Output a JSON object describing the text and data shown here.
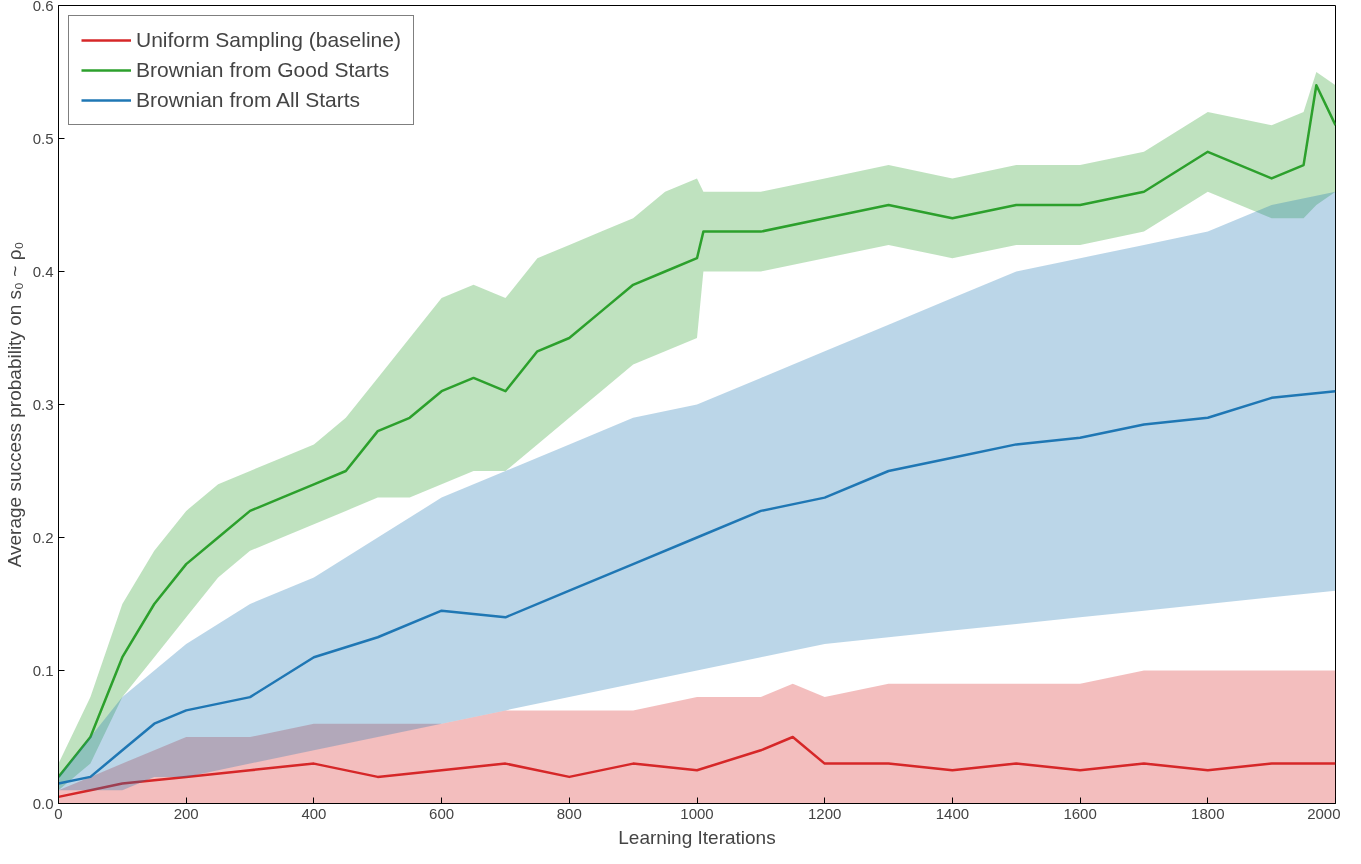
{
  "chart_data": {
    "type": "line",
    "xlabel": "Learning Iterations",
    "ylabel": "Average success probability on s₀ ~ ρ₀",
    "xlim": [
      0,
      2000
    ],
    "ylim": [
      0,
      0.6
    ],
    "xticks": [
      0,
      200,
      400,
      600,
      800,
      1000,
      1200,
      1400,
      1600,
      1800,
      2000
    ],
    "yticks": [
      {
        "value": 0,
        "label": "0.0"
      },
      0.1,
      0.2,
      0.3,
      0.4,
      0.5,
      0.6
    ],
    "grid": false,
    "legend": "top left",
    "marker": "none",
    "line_style": "solid",
    "series": [
      {
        "name": "Uniform Sampling (baseline)",
        "color": "#d62728",
        "x": [
          0,
          50,
          100,
          200,
          300,
          400,
          500,
          600,
          700,
          800,
          900,
          1000,
          1100,
          1150,
          1200,
          1300,
          1400,
          1500,
          1600,
          1700,
          1800,
          1900,
          2000
        ],
        "values": [
          0.005,
          0.01,
          0.015,
          0.02,
          0.025,
          0.03,
          0.02,
          0.025,
          0.03,
          0.02,
          0.03,
          0.025,
          0.04,
          0.05,
          0.03,
          0.03,
          0.025,
          0.03,
          0.025,
          0.03,
          0.025,
          0.03,
          0.03
        ],
        "lower": [
          0,
          0,
          0,
          0,
          0,
          0,
          0,
          0,
          0,
          0,
          0,
          0,
          0,
          0,
          0,
          0,
          0,
          0,
          0,
          0,
          0,
          0,
          0
        ],
        "upper": [
          0.01,
          0.02,
          0.03,
          0.05,
          0.05,
          0.06,
          0.06,
          0.06,
          0.07,
          0.07,
          0.07,
          0.08,
          0.08,
          0.09,
          0.08,
          0.09,
          0.09,
          0.09,
          0.09,
          0.1,
          0.1,
          0.1,
          0.1
        ]
      },
      {
        "name": "Brownian from Good Starts",
        "color": "#2ca02c",
        "x": [
          0,
          50,
          100,
          150,
          200,
          250,
          300,
          350,
          400,
          450,
          500,
          550,
          600,
          650,
          700,
          750,
          800,
          850,
          900,
          950,
          1000,
          1010,
          1100,
          1200,
          1300,
          1400,
          1500,
          1600,
          1700,
          1800,
          1900,
          1950,
          1970,
          2000
        ],
        "values": [
          0.02,
          0.05,
          0.11,
          0.15,
          0.18,
          0.2,
          0.22,
          0.23,
          0.24,
          0.25,
          0.28,
          0.29,
          0.31,
          0.32,
          0.31,
          0.34,
          0.35,
          0.37,
          0.39,
          0.4,
          0.41,
          0.43,
          0.43,
          0.44,
          0.45,
          0.44,
          0.45,
          0.45,
          0.46,
          0.49,
          0.47,
          0.48,
          0.54,
          0.51
        ],
        "lower": [
          0.01,
          0.03,
          0.08,
          0.11,
          0.14,
          0.17,
          0.19,
          0.2,
          0.21,
          0.22,
          0.23,
          0.23,
          0.24,
          0.25,
          0.25,
          0.27,
          0.29,
          0.31,
          0.33,
          0.34,
          0.35,
          0.4,
          0.4,
          0.41,
          0.42,
          0.41,
          0.42,
          0.42,
          0.43,
          0.46,
          0.44,
          0.44,
          0.45,
          0.46
        ],
        "upper": [
          0.03,
          0.08,
          0.15,
          0.19,
          0.22,
          0.24,
          0.25,
          0.26,
          0.27,
          0.29,
          0.32,
          0.35,
          0.38,
          0.39,
          0.38,
          0.41,
          0.42,
          0.43,
          0.44,
          0.46,
          0.47,
          0.46,
          0.46,
          0.47,
          0.48,
          0.47,
          0.48,
          0.48,
          0.49,
          0.52,
          0.51,
          0.52,
          0.55,
          0.54
        ]
      },
      {
        "name": "Brownian from All Starts",
        "color": "#1f77b4",
        "x": [
          0,
          50,
          100,
          150,
          200,
          300,
          400,
          500,
          600,
          700,
          800,
          900,
          1000,
          1100,
          1200,
          1300,
          1400,
          1500,
          1600,
          1700,
          1800,
          1900,
          2000
        ],
        "values": [
          0.015,
          0.02,
          0.04,
          0.06,
          0.07,
          0.08,
          0.11,
          0.125,
          0.145,
          0.14,
          0.16,
          0.18,
          0.2,
          0.22,
          0.23,
          0.25,
          0.26,
          0.27,
          0.275,
          0.285,
          0.29,
          0.305,
          0.31
        ],
        "lower": [
          0.01,
          0.01,
          0.01,
          0.02,
          0.02,
          0.03,
          0.04,
          0.05,
          0.06,
          0.07,
          0.08,
          0.09,
          0.1,
          0.11,
          0.12,
          0.125,
          0.13,
          0.135,
          0.14,
          0.145,
          0.15,
          0.155,
          0.16
        ],
        "upper": [
          0.02,
          0.05,
          0.08,
          0.1,
          0.12,
          0.15,
          0.17,
          0.2,
          0.23,
          0.25,
          0.27,
          0.29,
          0.3,
          0.32,
          0.34,
          0.36,
          0.38,
          0.4,
          0.41,
          0.42,
          0.43,
          0.45,
          0.46
        ]
      }
    ]
  }
}
